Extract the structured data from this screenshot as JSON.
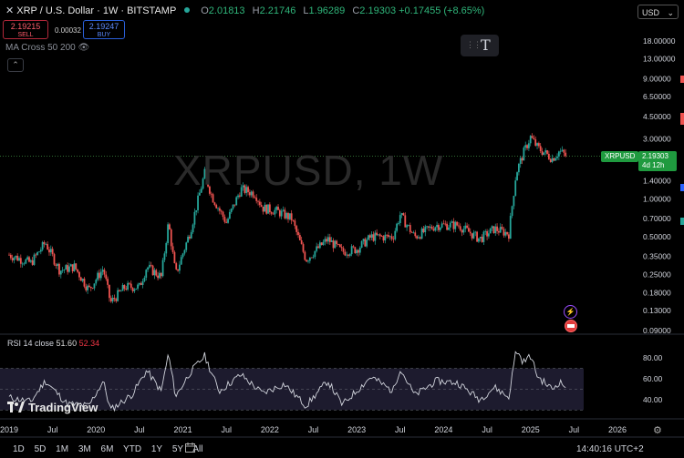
{
  "header": {
    "close_glyph": "✕",
    "title": "XRP / U.S. Dollar · 1W · BITSTAMP",
    "open_key": "O",
    "open": "2.01813",
    "high_key": "H",
    "high": "2.21746",
    "low_key": "L",
    "low": "1.96289",
    "close_key": "C",
    "close": "2.19303",
    "change": "+0.17455 (+8.65%)"
  },
  "trade": {
    "sell_price": "2.19215",
    "sell_label": "SELL",
    "spread": "0.00032",
    "buy_price": "2.19247",
    "buy_label": "BUY"
  },
  "indicator_label": "MA Cross 50 200",
  "currency": "USD",
  "watermark": "XRPUSD, 1W",
  "price_tag": {
    "symbol": "XRPUSD",
    "price": "2.19303",
    "countdown": "4d 12h"
  },
  "rsi": {
    "label": "RSI 14 close",
    "value1": "51.60",
    "value2": "52.34"
  },
  "brand": "TradingView",
  "ranges": [
    "1D",
    "5D",
    "1M",
    "3M",
    "6M",
    "YTD",
    "1Y",
    "5Y",
    "All"
  ],
  "clock": "14:40:16 UTC+2",
  "colors": {
    "up": "#26a69a",
    "down": "#ef5350",
    "accent_green": "#1f9a3f",
    "rsi_line": "#d1d4dc"
  },
  "chart_data": [
    {
      "type": "candlestick",
      "scale": "log",
      "price_axis_ticks": [
        "18.00000",
        "13.00000",
        "9.00000",
        "6.50000",
        "4.50000",
        "3.00000",
        "2.00000",
        "1.40000",
        "1.00000",
        "0.70000",
        "0.50000",
        "0.35000",
        "0.25000",
        "0.18000",
        "0.13000",
        "0.09000"
      ],
      "time_axis_ticks": [
        "2019",
        "Jul",
        "2020",
        "Jul",
        "2021",
        "Jul",
        "2022",
        "Jul",
        "2023",
        "Jul",
        "2024",
        "Jul",
        "2025",
        "Jul",
        "2026"
      ],
      "series": [
        {
          "name": "XRPUSD",
          "values": [
            [
              "2019-01",
              0.36
            ],
            [
              "2019-04",
              0.31
            ],
            [
              "2019-06",
              0.45
            ],
            [
              "2019-08",
              0.27
            ],
            [
              "2019-10",
              0.29
            ],
            [
              "2019-12",
              0.19
            ],
            [
              "2020-02",
              0.28
            ],
            [
              "2020-03",
              0.15
            ],
            [
              "2020-05",
              0.2
            ],
            [
              "2020-07",
              0.2
            ],
            [
              "2020-08",
              0.29
            ],
            [
              "2020-10",
              0.24
            ],
            [
              "2020-11",
              0.65
            ],
            [
              "2020-12",
              0.25
            ],
            [
              "2021-02",
              0.55
            ],
            [
              "2021-04",
              1.6
            ],
            [
              "2021-05",
              1.05
            ],
            [
              "2021-07",
              0.65
            ],
            [
              "2021-09",
              1.2
            ],
            [
              "2021-11",
              1.1
            ],
            [
              "2021-12",
              0.85
            ],
            [
              "2022-02",
              0.8
            ],
            [
              "2022-04",
              0.7
            ],
            [
              "2022-06",
              0.33
            ],
            [
              "2022-09",
              0.48
            ],
            [
              "2022-11",
              0.38
            ],
            [
              "2023-01",
              0.4
            ],
            [
              "2023-03",
              0.5
            ],
            [
              "2023-06",
              0.5
            ],
            [
              "2023-07",
              0.75
            ],
            [
              "2023-09",
              0.5
            ],
            [
              "2023-12",
              0.62
            ],
            [
              "2024-03",
              0.62
            ],
            [
              "2024-06",
              0.48
            ],
            [
              "2024-08",
              0.58
            ],
            [
              "2024-10",
              0.53
            ],
            [
              "2024-11",
              1.6
            ],
            [
              "2024-12",
              2.3
            ],
            [
              "2025-01",
              3.1
            ],
            [
              "2025-02",
              2.55
            ],
            [
              "2025-04",
              2.1
            ],
            [
              "2025-05",
              2.4
            ],
            [
              "2025-06",
              2.19
            ]
          ]
        }
      ]
    },
    {
      "type": "line",
      "y_axis_ticks": [
        "80.00",
        "60.00",
        "40.00"
      ],
      "ylim": [
        25,
        95
      ],
      "series": [
        {
          "name": "RSI 14 close",
          "values": [
            [
              "2019-01",
              42
            ],
            [
              "2019-04",
              38
            ],
            [
              "2019-06",
              58
            ],
            [
              "2019-09",
              36
            ],
            [
              "2019-12",
              34
            ],
            [
              "2020-02",
              58
            ],
            [
              "2020-03",
              30
            ],
            [
              "2020-06",
              45
            ],
            [
              "2020-08",
              68
            ],
            [
              "2020-10",
              48
            ],
            [
              "2020-11",
              84
            ],
            [
              "2020-12",
              43
            ],
            [
              "2021-02",
              66
            ],
            [
              "2021-04",
              82
            ],
            [
              "2021-06",
              48
            ],
            [
              "2021-09",
              64
            ],
            [
              "2021-12",
              46
            ],
            [
              "2022-03",
              55
            ],
            [
              "2022-06",
              34
            ],
            [
              "2022-09",
              58
            ],
            [
              "2022-11",
              35
            ],
            [
              "2023-03",
              62
            ],
            [
              "2023-06",
              48
            ],
            [
              "2023-07",
              70
            ],
            [
              "2023-09",
              44
            ],
            [
              "2023-12",
              58
            ],
            [
              "2024-03",
              56
            ],
            [
              "2024-06",
              40
            ],
            [
              "2024-08",
              52
            ],
            [
              "2024-10",
              42
            ],
            [
              "2024-11",
              88
            ],
            [
              "2024-12",
              76
            ],
            [
              "2025-01",
              82
            ],
            [
              "2025-02",
              62
            ],
            [
              "2025-04",
              50
            ],
            [
              "2025-05",
              57
            ],
            [
              "2025-06",
              51.6
            ]
          ]
        }
      ]
    }
  ]
}
